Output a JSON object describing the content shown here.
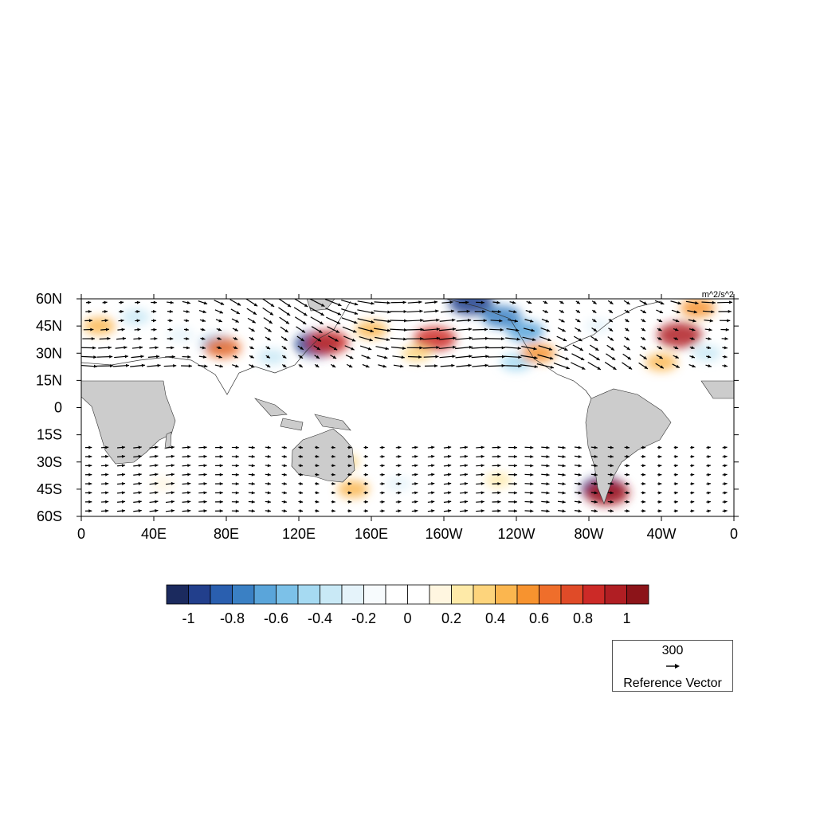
{
  "map": {
    "units": "m^2/s^2",
    "lon_ticks": [
      "0",
      "40E",
      "80E",
      "120E",
      "160E",
      "160W",
      "120W",
      "80W",
      "40W",
      "0"
    ],
    "lat_ticks": [
      "60N",
      "45N",
      "30N",
      "15N",
      "0",
      "15S",
      "30S",
      "45S",
      "60S"
    ],
    "land_color": "#cccccc",
    "anomaly_blobs": [
      {
        "lon": 10,
        "lat": 45,
        "v": 0.5
      },
      {
        "lon": 30,
        "lat": 50,
        "v": -0.4
      },
      {
        "lon": 55,
        "lat": 40,
        "v": -0.3
      },
      {
        "lon": 75,
        "lat": 35,
        "v": -0.6
      },
      {
        "lon": 78,
        "lat": 33,
        "v": 0.7
      },
      {
        "lon": 105,
        "lat": 28,
        "v": -0.4
      },
      {
        "lon": 130,
        "lat": 35,
        "v": -1.0
      },
      {
        "lon": 136,
        "lat": 36,
        "v": 0.9
      },
      {
        "lon": 160,
        "lat": 43,
        "v": 0.5
      },
      {
        "lon": 195,
        "lat": 38,
        "v": 0.9
      },
      {
        "lon": 185,
        "lat": 30,
        "v": 0.4
      },
      {
        "lon": 215,
        "lat": 58,
        "v": -1.0
      },
      {
        "lon": 232,
        "lat": 50,
        "v": -0.8
      },
      {
        "lon": 245,
        "lat": 42,
        "v": -0.7
      },
      {
        "lon": 240,
        "lat": 25,
        "v": -0.5
      },
      {
        "lon": 252,
        "lat": 30,
        "v": 0.6
      },
      {
        "lon": 285,
        "lat": 45,
        "v": -0.3
      },
      {
        "lon": 330,
        "lat": 40,
        "v": 1.0
      },
      {
        "lon": 320,
        "lat": 25,
        "v": 0.5
      },
      {
        "lon": 345,
        "lat": 30,
        "v": -0.4
      },
      {
        "lon": 340,
        "lat": 55,
        "v": 0.6
      },
      {
        "lon": 145,
        "lat": -30,
        "v": 0.4
      },
      {
        "lon": 150,
        "lat": -45,
        "v": 0.5
      },
      {
        "lon": 175,
        "lat": -42,
        "v": -0.3
      },
      {
        "lon": 288,
        "lat": -45,
        "v": -1.0
      },
      {
        "lon": 290,
        "lat": -47,
        "v": 1.0
      },
      {
        "lon": 230,
        "lat": -40,
        "v": 0.3
      },
      {
        "lon": 45,
        "lat": -42,
        "v": 0.2
      }
    ]
  },
  "colorbar": {
    "colors": [
      "#1b2a5e",
      "#223f8c",
      "#2a5faf",
      "#3a80c4",
      "#5aa5da",
      "#7cc1e8",
      "#a6daf2",
      "#c9e9f6",
      "#e5f3fa",
      "#f7fbfd",
      "#ffffff",
      "#ffffff",
      "#fff6e0",
      "#feeaa8",
      "#fdd47c",
      "#fbb64f",
      "#f7932f",
      "#ef6e2b",
      "#e04b28",
      "#cc2a27",
      "#b01e23",
      "#8c1419"
    ],
    "labels": [
      "-1",
      "-0.8",
      "-0.6",
      "-0.4",
      "-0.2",
      "0",
      "0.2",
      "0.4",
      "0.6",
      "0.8",
      "1"
    ]
  },
  "reference_vector": {
    "magnitude": "300",
    "title": "Reference Vector"
  }
}
